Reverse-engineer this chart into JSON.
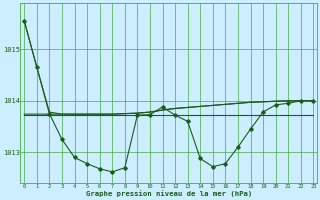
{
  "x": [
    0,
    1,
    2,
    3,
    4,
    5,
    6,
    7,
    8,
    9,
    10,
    11,
    12,
    13,
    14,
    15,
    16,
    17,
    18,
    19,
    20,
    21,
    22,
    23
  ],
  "y_main": [
    1015.55,
    1014.65,
    1013.75,
    1013.25,
    1012.9,
    1012.78,
    1012.68,
    1012.62,
    1012.7,
    1013.72,
    1013.73,
    1013.88,
    1013.72,
    1013.6,
    1012.88,
    1012.72,
    1012.78,
    1013.1,
    1013.45,
    1013.78,
    1013.92,
    1013.95,
    1014.0,
    1014.0
  ],
  "y_flat": [
    1013.72,
    1013.72,
    1013.72,
    1013.72,
    1013.72,
    1013.72,
    1013.72,
    1013.72,
    1013.72,
    1013.72,
    1013.72,
    1013.72,
    1013.72,
    1013.72,
    1013.72,
    1013.72,
    1013.72,
    1013.72,
    1013.72,
    1013.72,
    1013.72,
    1013.72,
    1013.72,
    1013.72
  ],
  "y_smooth_drop": [
    1015.55,
    1014.65,
    1013.78,
    1013.74,
    1013.74,
    1013.74,
    1013.74,
    1013.74,
    1013.75,
    1013.76,
    1013.78,
    1013.82,
    1013.85,
    1013.87,
    1013.89,
    1013.91,
    1013.93,
    1013.95,
    1013.97,
    1013.98,
    1013.99,
    1014.0,
    1014.0,
    1014.0
  ],
  "y_rising": [
    1013.74,
    1013.74,
    1013.74,
    1013.74,
    1013.74,
    1013.74,
    1013.74,
    1013.74,
    1013.75,
    1013.76,
    1013.78,
    1013.82,
    1013.85,
    1013.87,
    1013.89,
    1013.91,
    1013.93,
    1013.95,
    1013.97,
    1013.98,
    1013.99,
    1014.0,
    1014.0,
    1014.0
  ],
  "background_color": "#cceeff",
  "grid_color": "#44aa44",
  "line_color": "#1a5c1a",
  "ylabel_ticks": [
    1013,
    1014,
    1015
  ],
  "xlabel_ticks": [
    0,
    1,
    2,
    3,
    4,
    5,
    6,
    7,
    8,
    9,
    10,
    11,
    12,
    13,
    14,
    15,
    16,
    17,
    18,
    19,
    20,
    21,
    22,
    23
  ],
  "xlabel": "Graphe pression niveau de la mer (hPa)",
  "ylim": [
    1012.4,
    1015.9
  ],
  "xlim": [
    -0.3,
    23.3
  ]
}
